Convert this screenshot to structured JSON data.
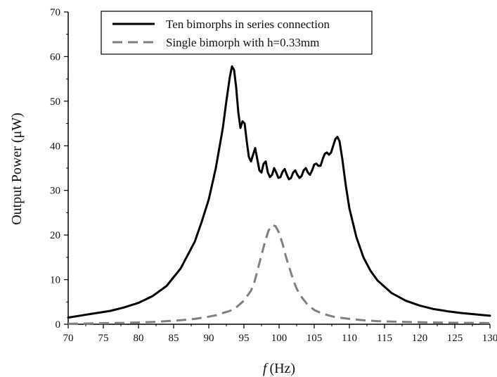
{
  "chart_data": {
    "type": "line",
    "xlabel_italic": "f",
    "xlabel_unit": "(Hz)",
    "ylabel": "Output Power (μW)",
    "xlim": [
      70,
      130
    ],
    "ylim": [
      0,
      70
    ],
    "x_ticks": [
      70,
      75,
      80,
      85,
      90,
      95,
      100,
      105,
      110,
      115,
      120,
      125,
      130
    ],
    "y_ticks": [
      0,
      10,
      20,
      30,
      40,
      50,
      60,
      70
    ],
    "grid": false,
    "legend_position": "top-center",
    "colors": {
      "series_1": "#000000",
      "series_2": "#808080"
    },
    "series": [
      {
        "name": "Ten bimorphs in series connection",
        "style": "solid",
        "x": [
          70,
          72,
          74,
          76,
          78,
          80,
          82,
          84,
          86,
          88,
          89,
          90,
          91,
          92,
          92.5,
          93,
          93.3,
          93.6,
          93.9,
          94.2,
          94.5,
          94.8,
          95.1,
          95.4,
          95.7,
          96.0,
          96.3,
          96.6,
          96.9,
          97.2,
          97.5,
          97.8,
          98.1,
          98.4,
          98.7,
          99.0,
          99.3,
          99.6,
          99.9,
          100.2,
          100.5,
          100.8,
          101.1,
          101.4,
          101.7,
          102.0,
          102.3,
          102.6,
          102.9,
          103.2,
          103.5,
          103.8,
          104.1,
          104.4,
          104.7,
          105.0,
          105.3,
          105.6,
          105.9,
          106.2,
          106.5,
          106.8,
          107.1,
          107.4,
          107.7,
          108.0,
          108.3,
          108.6,
          109.0,
          109.5,
          110,
          111,
          112,
          113,
          114,
          116,
          118,
          120,
          122,
          124,
          126,
          128,
          130
        ],
        "values": [
          1.5,
          2.0,
          2.5,
          3.0,
          3.8,
          4.8,
          6.3,
          8.6,
          12.5,
          18.5,
          23.0,
          28.0,
          35.0,
          44.0,
          50.0,
          55.5,
          57.8,
          57.0,
          53.0,
          47.5,
          44.0,
          45.5,
          45.0,
          41.0,
          37.5,
          36.5,
          38.0,
          39.5,
          37.0,
          34.5,
          34.0,
          36.0,
          36.5,
          34.0,
          33.0,
          33.5,
          35.0,
          34.0,
          32.8,
          33.0,
          34.2,
          34.8,
          33.5,
          32.5,
          32.8,
          34.0,
          34.5,
          33.5,
          32.8,
          33.2,
          34.5,
          35.0,
          34.0,
          33.5,
          34.5,
          35.8,
          36.0,
          35.5,
          35.5,
          37.0,
          38.2,
          38.5,
          38.0,
          38.5,
          40.0,
          41.5,
          42.0,
          41.0,
          37.0,
          31.0,
          26.0,
          19.5,
          15.0,
          12.0,
          9.8,
          7.0,
          5.3,
          4.2,
          3.4,
          2.9,
          2.5,
          2.2,
          1.9
        ]
      },
      {
        "name": "Single bimorph with h=0.33mm",
        "style": "dashed",
        "x": [
          70,
          72,
          74,
          76,
          78,
          80,
          82,
          84,
          86,
          88,
          90,
          91,
          92,
          93,
          94,
          95,
          96,
          96.5,
          97,
          97.5,
          98,
          98.5,
          99,
          99.5,
          100,
          100.5,
          101,
          101.5,
          102,
          102.5,
          103,
          104,
          105,
          106,
          107,
          108,
          110,
          112,
          114,
          116,
          118,
          120,
          122,
          124,
          126,
          128,
          130
        ],
        "values": [
          0.1,
          0.15,
          0.2,
          0.25,
          0.3,
          0.4,
          0.5,
          0.7,
          0.9,
          1.2,
          1.7,
          2.0,
          2.5,
          3.0,
          3.9,
          5.3,
          7.5,
          9.5,
          12.5,
          15.5,
          18.5,
          21.0,
          22.2,
          22.0,
          20.5,
          18.0,
          15.0,
          12.5,
          10.0,
          8.0,
          6.5,
          4.5,
          3.2,
          2.5,
          2.0,
          1.6,
          1.2,
          0.9,
          0.7,
          0.6,
          0.5,
          0.45,
          0.4,
          0.35,
          0.3,
          0.3,
          0.25
        ]
      }
    ]
  }
}
